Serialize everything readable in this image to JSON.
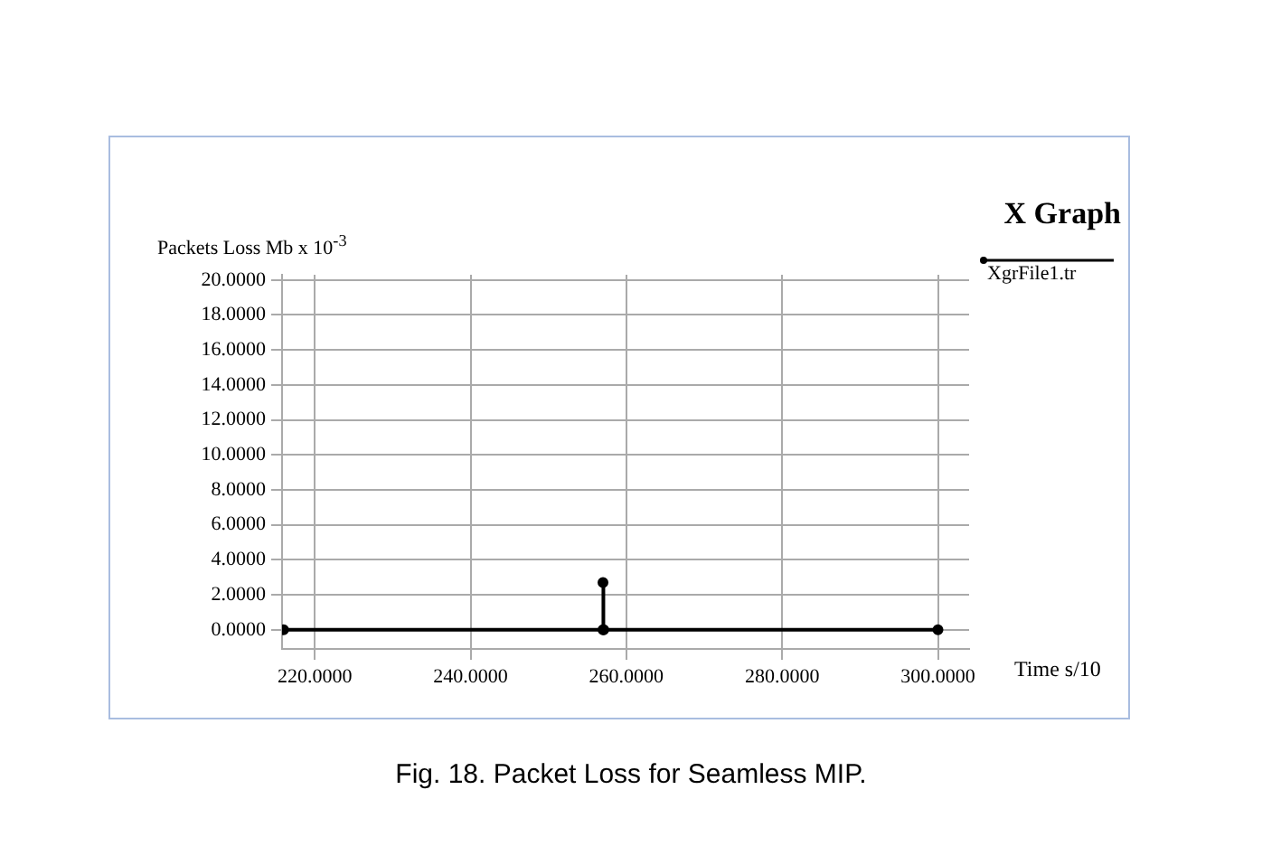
{
  "chart_data": {
    "type": "line",
    "title": "X Graph",
    "xlabel": "Time s/10",
    "ylabel": "Packets Loss Mb x 10$^{-3}$",
    "annotations": [
      "Fig. 18. Packet Loss for Seamless MIP."
    ],
    "series": [
      {
        "name": "XgrFile1.tr",
        "color": "#000000",
        "x": [
          216,
          257,
          257,
          257.1,
          300
        ],
        "values": [
          0,
          0,
          2.7,
          0,
          0
        ]
      }
    ],
    "xlim": [
      215.8,
      304
    ],
    "xticks": [
      {
        "value": 220,
        "label": "220.0000"
      },
      {
        "value": 240,
        "label": "240.0000"
      },
      {
        "value": 260,
        "label": "260.0000"
      },
      {
        "value": 280,
        "label": "280.0000"
      },
      {
        "value": 300,
        "label": "300.0000"
      }
    ],
    "ylim": [
      -1.1,
      20.3
    ],
    "yticks": [
      {
        "value": 0,
        "label": "0.0000"
      },
      {
        "value": 2,
        "label": "2.0000"
      },
      {
        "value": 4,
        "label": "4.0000"
      },
      {
        "value": 6,
        "label": "6.0000"
      },
      {
        "value": 8,
        "label": "8.0000"
      },
      {
        "value": 10,
        "label": "10.0000"
      },
      {
        "value": 12,
        "label": "12.0000"
      },
      {
        "value": 14,
        "label": "14.0000"
      },
      {
        "value": 16,
        "label": "16.0000"
      },
      {
        "value": 18,
        "label": "18.0000"
      },
      {
        "value": 20,
        "label": "20.0000"
      }
    ],
    "grid": true,
    "legend": "top right",
    "marker": "circle",
    "line_style": "solid"
  }
}
